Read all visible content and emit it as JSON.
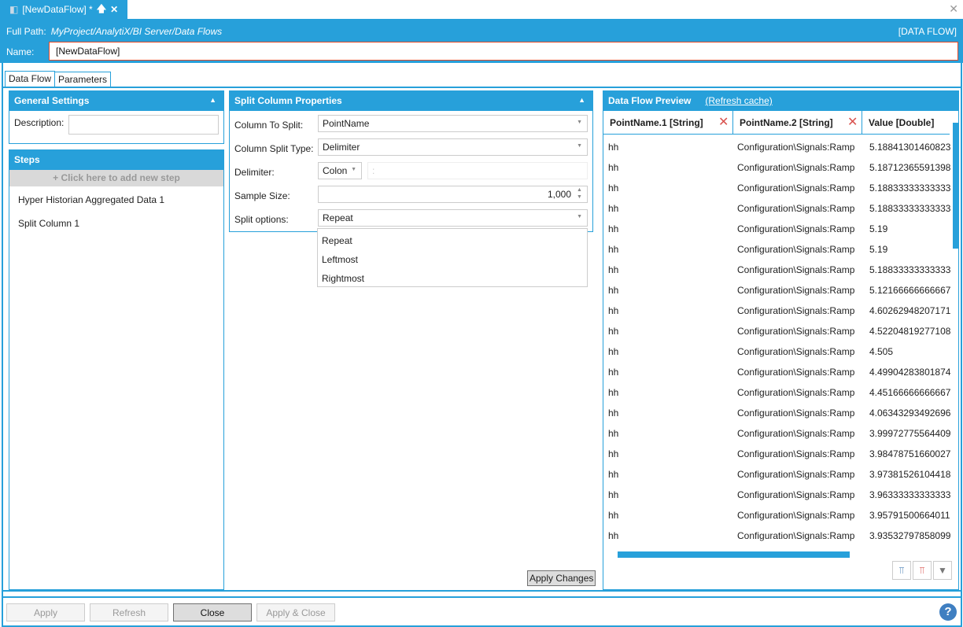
{
  "window": {
    "tab_title": "[NewDataFlow] *",
    "pin_glyph": "🡅",
    "close_glyph": "✕",
    "window_close_glyph": "✕"
  },
  "header": {
    "full_path_label": "Full Path:",
    "full_path": "MyProject/AnalytiX/BI Server/Data Flows",
    "type": "[DATA FLOW]",
    "name_label": "Name:",
    "name_value": "[NewDataFlow]"
  },
  "tabs": [
    {
      "label": "Data Flow",
      "active": true
    },
    {
      "label": "Parameters",
      "active": false
    }
  ],
  "general": {
    "title": "General Settings",
    "description_label": "Description:",
    "description_value": ""
  },
  "steps": {
    "title": "Steps",
    "add_label": "+  Click here to add new step",
    "items": [
      "Hyper Historian Aggregated Data  1",
      "Split Column  1"
    ]
  },
  "split": {
    "title": "Split Column Properties",
    "column_to_split_label": "Column To Split:",
    "column_to_split": "PointName",
    "split_type_label": "Column Split Type:",
    "split_type": "Delimiter",
    "delimiter_label": "Delimiter:",
    "delimiter": "Colon",
    "delimiter_char": ":",
    "sample_size_label": "Sample Size:",
    "sample_size": "1,000",
    "split_options_label": "Split options:",
    "split_option": "Repeat",
    "options": [
      "Repeat",
      "Leftmost",
      "Rightmost"
    ],
    "apply_changes": "Apply Changes"
  },
  "preview": {
    "title": "Data Flow Preview",
    "refresh": "(Refresh cache)",
    "columns": [
      "PointName.1  [String]",
      "PointName.2  [String]",
      "Value  [Double]"
    ],
    "rows": [
      [
        "hh",
        "Configuration\\Signals:Ramp",
        "5.18841301460823"
      ],
      [
        "hh",
        "Configuration\\Signals:Ramp",
        "5.18712365591398"
      ],
      [
        "hh",
        "Configuration\\Signals:Ramp",
        "5.18833333333333"
      ],
      [
        "hh",
        "Configuration\\Signals:Ramp",
        "5.18833333333333"
      ],
      [
        "hh",
        "Configuration\\Signals:Ramp",
        "5.19"
      ],
      [
        "hh",
        "Configuration\\Signals:Ramp",
        "5.19"
      ],
      [
        "hh",
        "Configuration\\Signals:Ramp",
        "5.18833333333333"
      ],
      [
        "hh",
        "Configuration\\Signals:Ramp",
        "5.12166666666667"
      ],
      [
        "hh",
        "Configuration\\Signals:Ramp",
        "4.60262948207171"
      ],
      [
        "hh",
        "Configuration\\Signals:Ramp",
        "4.52204819277108"
      ],
      [
        "hh",
        "Configuration\\Signals:Ramp",
        "4.505"
      ],
      [
        "hh",
        "Configuration\\Signals:Ramp",
        "4.49904283801874"
      ],
      [
        "hh",
        "Configuration\\Signals:Ramp",
        "4.45166666666667"
      ],
      [
        "hh",
        "Configuration\\Signals:Ramp",
        "4.06343293492696"
      ],
      [
        "hh",
        "Configuration\\Signals:Ramp",
        "3.99972775564409"
      ],
      [
        "hh",
        "Configuration\\Signals:Ramp",
        "3.98478751660027"
      ],
      [
        "hh",
        "Configuration\\Signals:Ramp",
        "3.97381526104418"
      ],
      [
        "hh",
        "Configuration\\Signals:Ramp",
        "3.96333333333333"
      ],
      [
        "hh",
        "Configuration\\Signals:Ramp",
        "3.95791500664011"
      ],
      [
        "hh",
        "Configuration\\Signals:Ramp",
        "3.93532797858099"
      ]
    ]
  },
  "footer": {
    "apply": "Apply",
    "refresh": "Refresh",
    "close": "Close",
    "apply_close": "Apply & Close",
    "help": "?"
  },
  "colors": {
    "accent": "#27a0da",
    "error_border": "#e04a2a",
    "remove": "#d9534f"
  }
}
